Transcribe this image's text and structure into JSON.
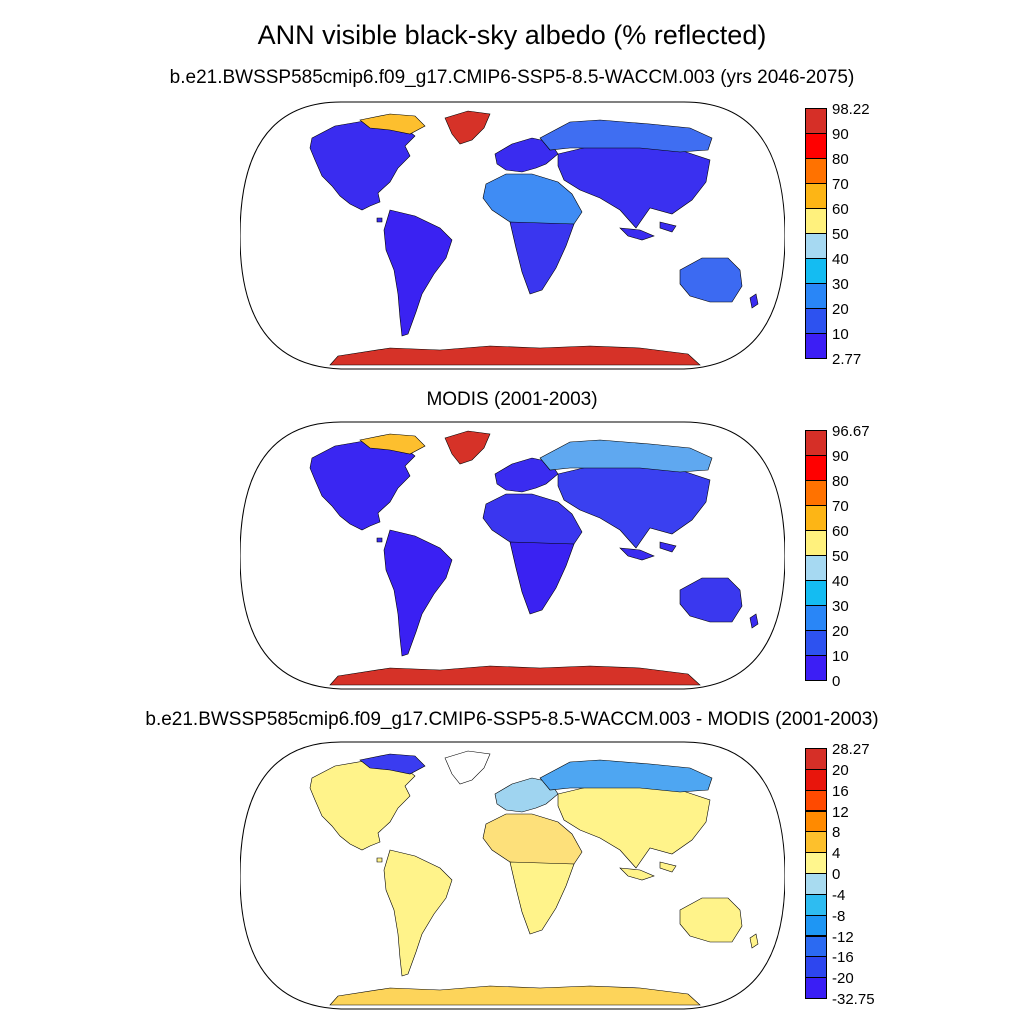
{
  "title": "ANN visible black-sky albedo (% reflected)",
  "panels": [
    {
      "id": "model",
      "title": "b.e21.BWSSP585cmip6.f09_g17.CMIP6-SSP5-8.5-WACCM.003 (yrs 2046-2075)",
      "colorbar": {
        "labels": [
          "98.22",
          "90",
          "80",
          "70",
          "60",
          "50",
          "40",
          "30",
          "20",
          "10",
          "2.77"
        ],
        "colors": [
          "#d62f27",
          "#ff0000",
          "#ff7200",
          "#fdb515",
          "#fff17d",
          "#a6d9f2",
          "#14bcf2",
          "#2986f7",
          "#2d52f0",
          "#3c1ef5"
        ]
      },
      "fills": {
        "north_america": "#3a2cf0",
        "greenland": "#d63228",
        "arctic_islands": "#fdbf2e",
        "south_america": "#3a22f2",
        "europe": "#3a2cf0",
        "africa_north": "#3f8cf4",
        "africa_south": "#3a36ef",
        "asia": "#3a30f0",
        "siberia": "#3f6ef2",
        "australia": "#3c6af2",
        "antarctica": "#d63228",
        "small_islands": "#3a2cf0"
      }
    },
    {
      "id": "obs",
      "title": "MODIS (2001-2003)",
      "colorbar": {
        "labels": [
          "96.67",
          "90",
          "80",
          "70",
          "60",
          "50",
          "40",
          "30",
          "20",
          "10",
          "0"
        ],
        "colors": [
          "#d62f27",
          "#ff0000",
          "#ff7200",
          "#fdb515",
          "#fff17d",
          "#a6d9f2",
          "#14bcf2",
          "#2986f7",
          "#2d52f0",
          "#3c1ef5"
        ]
      },
      "fills": {
        "north_america": "#3a26f2",
        "greenland": "#d63228",
        "arctic_islands": "#fdbf2e",
        "south_america": "#3a20f3",
        "europe": "#3a2cf0",
        "africa_north": "#3a36ef",
        "africa_south": "#3a22f2",
        "asia": "#3a40f0",
        "siberia": "#5fa8f0",
        "australia": "#3a38ef",
        "antarctica": "#d63228",
        "small_islands": "#3a2cf0"
      }
    },
    {
      "id": "diff",
      "title": "b.e21.BWSSP585cmip6.f09_g17.CMIP6-SSP5-8.5-WACCM.003 - MODIS (2001-2003)",
      "colorbar": {
        "labels": [
          "28.27",
          "20",
          "16",
          "12",
          "8",
          "4",
          "0",
          "-4",
          "-8",
          "-12",
          "-16",
          "-20",
          "-32.75"
        ],
        "colors": [
          "#d62f27",
          "#e8150c",
          "#ff4a00",
          "#ff8a00",
          "#fdc02c",
          "#fff68d",
          "#a8dbf0",
          "#2ebcf1",
          "#1e96f4",
          "#2b6af2",
          "#2d46ef",
          "#3a1ef5"
        ]
      },
      "fills": {
        "north_america": "#fff38a",
        "greenland": "#ffffff",
        "arctic_islands": "#3a3cf0",
        "south_america": "#fff38a",
        "europe": "#9fd4f0",
        "africa_north": "#fde07a",
        "africa_south": "#fff38a",
        "asia": "#fff38a",
        "siberia": "#4ea6f2",
        "australia": "#fff38a",
        "antarctica": "#fdd45a",
        "small_islands": "#fff38a"
      }
    }
  ]
}
